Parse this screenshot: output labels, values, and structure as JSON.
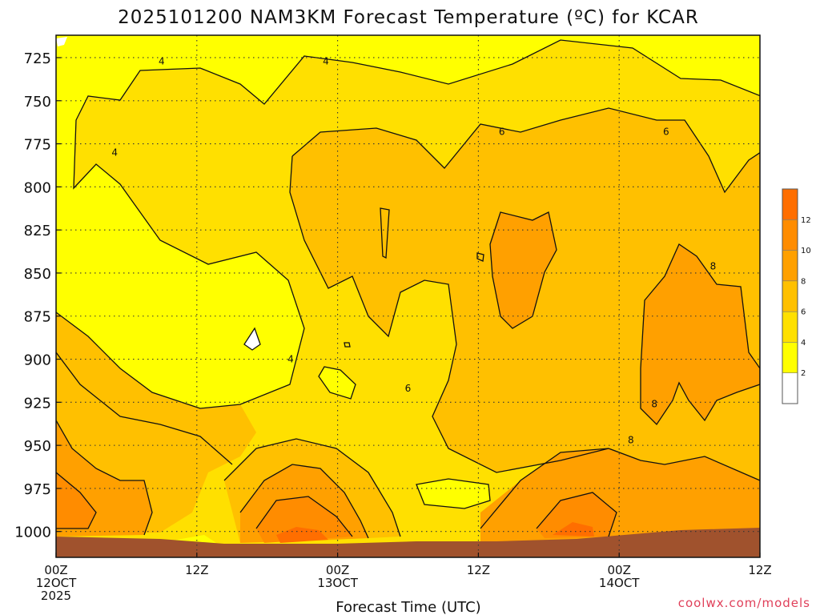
{
  "title": "2025101200 NAM3KM Forecast Temperature (ºC) for KCAR",
  "xlabel": "Forecast Time (UTC)",
  "credit": "coolwx.com/models",
  "colors": {
    "bands": [
      "#ffffff",
      "#ffff00",
      "#ffe000",
      "#ffc000",
      "#ffa000",
      "#ff8c00",
      "#ff6e00"
    ],
    "ground": "#a0522d",
    "frame": "#111111",
    "credit": "#e0405a"
  },
  "chart_data": {
    "type": "heatmap",
    "title": "2025101200 NAM3KM Forecast Temperature (ºC) for KCAR",
    "xlabel": "Forecast Time (UTC)",
    "ylabel": "",
    "y_axis": {
      "unit": "hPa",
      "inverted": true,
      "range": [
        712,
        1015
      ],
      "ticks": [
        725,
        750,
        775,
        800,
        825,
        850,
        875,
        900,
        925,
        950,
        975,
        1000
      ]
    },
    "x_axis": {
      "unit": "forecast hour",
      "range": [
        0,
        60
      ],
      "ticks": [
        {
          "hour": 0,
          "lines": [
            "00Z",
            "12OCT",
            "2025"
          ]
        },
        {
          "hour": 12,
          "lines": [
            "12Z"
          ]
        },
        {
          "hour": 24,
          "lines": [
            "00Z",
            "13OCT"
          ]
        },
        {
          "hour": 36,
          "lines": [
            "12Z"
          ]
        },
        {
          "hour": 48,
          "lines": [
            "00Z",
            "14OCT"
          ]
        },
        {
          "hour": 60,
          "lines": [
            "12Z"
          ]
        }
      ]
    },
    "grid": true,
    "colorbar": {
      "levels": [
        2,
        4,
        6,
        8,
        10,
        12
      ],
      "range": [
        0,
        14
      ],
      "position": "right"
    },
    "contour_labels": [
      {
        "text": "4",
        "hour": 9,
        "hPa": 727
      },
      {
        "text": "4",
        "hour": 23,
        "hPa": 727
      },
      {
        "text": "4",
        "hour": 5,
        "hPa": 780
      },
      {
        "text": "4",
        "hour": 20,
        "hPa": 900
      },
      {
        "text": "6",
        "hour": 38,
        "hPa": 768
      },
      {
        "text": "6",
        "hour": 52,
        "hPa": 768
      },
      {
        "text": "6",
        "hour": 30,
        "hPa": 917
      },
      {
        "text": "8",
        "hour": 56,
        "hPa": 846
      },
      {
        "text": "8",
        "hour": 51,
        "hPa": 926
      },
      {
        "text": "8",
        "hour": 49,
        "hPa": 947
      }
    ]
  }
}
